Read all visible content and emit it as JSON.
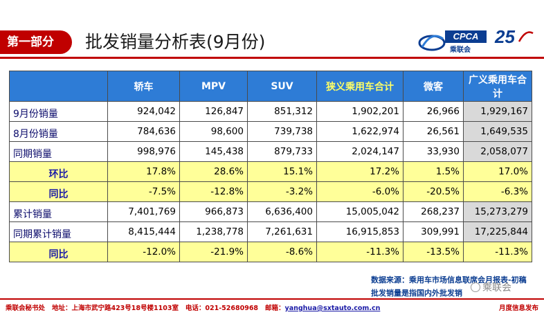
{
  "header": {
    "section_tag": "第一部分",
    "title": "批发销量分析表(9月份)",
    "logo_cpca": "CPCA",
    "logo_cpca_sub": "乘联会",
    "logo_anniversary": "25"
  },
  "table": {
    "columns": [
      "",
      "轿车",
      "MPV",
      "SUV",
      "狭义乘用车合计",
      "微客",
      "广义乘用车合计"
    ],
    "rows": [
      {
        "label": "9月份销量",
        "values": [
          "924,042",
          "126,847",
          "851,312",
          "1,902,201",
          "26,966",
          "1,929,167"
        ],
        "style": "normal"
      },
      {
        "label": "8月份销量",
        "values": [
          "784,636",
          "98,600",
          "739,738",
          "1,622,974",
          "26,561",
          "1,649,535"
        ],
        "style": "normal"
      },
      {
        "label": "同期销量",
        "values": [
          "998,976",
          "145,438",
          "879,733",
          "2,024,147",
          "33,930",
          "2,058,077"
        ],
        "style": "normal"
      },
      {
        "label": "环比",
        "values": [
          "17.8%",
          "28.6%",
          "15.1%",
          "17.2%",
          "1.5%",
          "17.0%"
        ],
        "style": "yellow"
      },
      {
        "label": "同比",
        "values": [
          "-7.5%",
          "-12.8%",
          "-3.2%",
          "-6.0%",
          "-20.5%",
          "-6.3%"
        ],
        "style": "yellow"
      },
      {
        "label": "累计销量",
        "values": [
          "7,401,769",
          "966,873",
          "6,636,400",
          "15,005,042",
          "268,237",
          "15,273,279"
        ],
        "style": "normal"
      },
      {
        "label": "同期累计销量",
        "values": [
          "8,415,444",
          "1,238,778",
          "7,261,631",
          "16,915,853",
          "309,991",
          "17,225,844"
        ],
        "style": "normal"
      },
      {
        "label": "同比",
        "values": [
          "-12.0%",
          "-21.9%",
          "-8.6%",
          "-11.3%",
          "-13.5%",
          "-11.3%"
        ],
        "style": "yellow"
      }
    ]
  },
  "notes": {
    "source": "数据来源：乘用车市场信息联席会月报表-初稿",
    "definition": "批发销量是指国内外批发销"
  },
  "watermark": "乘联会",
  "footer": {
    "org": "乘联会秘书处",
    "address": "地址：上海市武宁路423号18号楼1103室",
    "phone": "电话：021-52680968",
    "email_label": "邮箱：",
    "email": "yanghua@sxtauto.com.cn",
    "right": "月度信息发布"
  },
  "colors": {
    "accent_red": "#c00000",
    "header_blue": "#2e7cd6",
    "highlight_yellow": "#ffff99",
    "grey_cell": "#d9d9d9"
  }
}
